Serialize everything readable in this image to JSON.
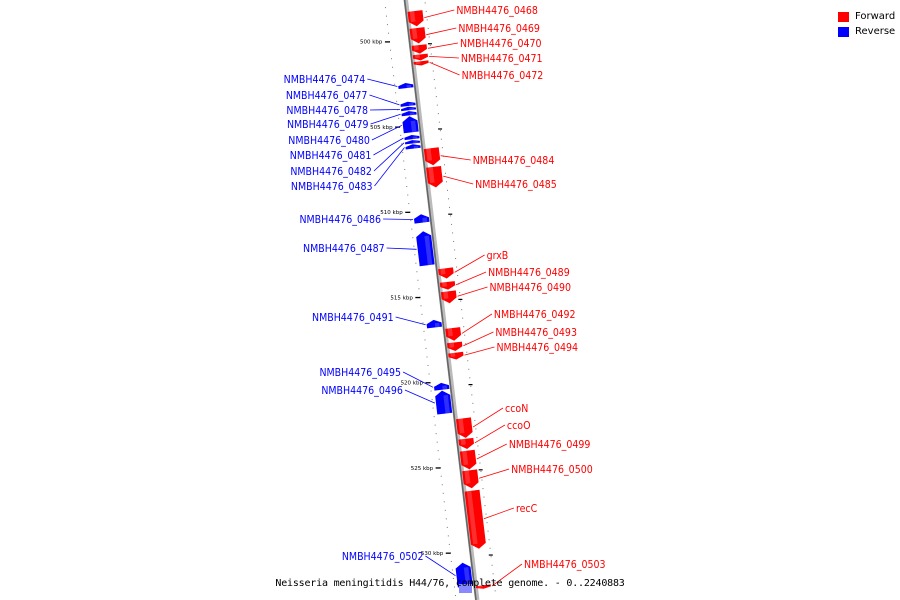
{
  "legend": {
    "forward_label": "Forward",
    "reverse_label": "Reverse",
    "forward_color": "#ff0000",
    "reverse_color": "#0000ff"
  },
  "caption": "Neisseria meningitidis H44/76, complete genome. - 0..2240883",
  "axis": {
    "start_kbp": 497.4,
    "end_kbp": 532.9,
    "ticks": [
      {
        "kbp": 500,
        "label": "500 kbp"
      },
      {
        "kbp": 505,
        "label": "505 kbp"
      },
      {
        "kbp": 510,
        "label": "510 kbp"
      },
      {
        "kbp": 515,
        "label": "515 kbp"
      },
      {
        "kbp": 520,
        "label": "520 kbp"
      },
      {
        "kbp": 525,
        "label": "525 kbp"
      },
      {
        "kbp": 530,
        "label": "530 kbp"
      }
    ]
  },
  "genes": [
    {
      "name": "NMBH4476_0468",
      "strand": "+",
      "start_kbp": 498.4,
      "end_kbp": 499.3
    },
    {
      "name": "NMBH4476_0469",
      "strand": "+",
      "start_kbp": 499.4,
      "end_kbp": 500.3
    },
    {
      "name": "NMBH4476_0470",
      "strand": "+",
      "start_kbp": 500.4,
      "end_kbp": 500.9
    },
    {
      "name": "NMBH4476_0471",
      "strand": "+",
      "start_kbp": 500.95,
      "end_kbp": 501.3
    },
    {
      "name": "NMBH4476_0472",
      "strand": "+",
      "start_kbp": 501.35,
      "end_kbp": 501.6
    },
    {
      "name": "NMBH4476_0474",
      "strand": "-",
      "start_kbp": 502.5,
      "end_kbp": 502.8
    },
    {
      "name": "NMBH4476_0477",
      "strand": "-",
      "start_kbp": 503.6,
      "end_kbp": 503.85
    },
    {
      "name": "NMBH4476_0478",
      "strand": "-",
      "start_kbp": 503.9,
      "end_kbp": 504.1
    },
    {
      "name": "NMBH4476_0479",
      "strand": "-",
      "start_kbp": 504.15,
      "end_kbp": 504.4
    },
    {
      "name": "NMBH4476_0480",
      "strand": "-",
      "start_kbp": 504.45,
      "end_kbp": 505.4
    },
    {
      "name": "NMBH4476_0481",
      "strand": "-",
      "start_kbp": 505.55,
      "end_kbp": 505.8
    },
    {
      "name": "NMBH4476_0482",
      "strand": "-",
      "start_kbp": 505.85,
      "end_kbp": 506.05
    },
    {
      "name": "NMBH4476_0483",
      "strand": "-",
      "start_kbp": 506.1,
      "end_kbp": 506.35
    },
    {
      "name": "NMBH4476_0484",
      "strand": "+",
      "start_kbp": 506.45,
      "end_kbp": 507.45
    },
    {
      "name": "NMBH4476_0485",
      "strand": "+",
      "start_kbp": 507.55,
      "end_kbp": 508.75
    },
    {
      "name": "NMBH4476_0486",
      "strand": "-",
      "start_kbp": 510.2,
      "end_kbp": 510.7
    },
    {
      "name": "NMBH4476_0487",
      "strand": "-",
      "start_kbp": 511.2,
      "end_kbp": 513.2
    },
    {
      "name": "grxB",
      "strand": "+",
      "start_kbp": 513.5,
      "end_kbp": 514.1
    },
    {
      "name": "NMBH4476_0489",
      "strand": "+",
      "start_kbp": 514.3,
      "end_kbp": 514.75
    },
    {
      "name": "NMBH4476_0490",
      "strand": "+",
      "start_kbp": 514.85,
      "end_kbp": 515.55
    },
    {
      "name": "NMBH4476_0491",
      "strand": "-",
      "start_kbp": 516.4,
      "end_kbp": 516.85
    },
    {
      "name": "NMBH4476_0492",
      "strand": "+",
      "start_kbp": 517.0,
      "end_kbp": 517.75
    },
    {
      "name": "NMBH4476_0493",
      "strand": "+",
      "start_kbp": 517.85,
      "end_kbp": 518.35
    },
    {
      "name": "NMBH4476_0494",
      "strand": "+",
      "start_kbp": 518.45,
      "end_kbp": 518.85
    },
    {
      "name": "NMBH4476_0495",
      "strand": "-",
      "start_kbp": 520.1,
      "end_kbp": 520.5
    },
    {
      "name": "NMBH4476_0496",
      "strand": "-",
      "start_kbp": 520.55,
      "end_kbp": 521.9
    },
    {
      "name": "ccoN",
      "strand": "+",
      "start_kbp": 522.3,
      "end_kbp": 523.45
    },
    {
      "name": "ccoO",
      "strand": "+",
      "start_kbp": 523.5,
      "end_kbp": 524.1
    },
    {
      "name": "NMBH4476_0499",
      "strand": "+",
      "start_kbp": 524.2,
      "end_kbp": 525.3
    },
    {
      "name": "NMBH4476_0500",
      "strand": "+",
      "start_kbp": 525.35,
      "end_kbp": 526.4
    },
    {
      "name": "recC",
      "strand": "+",
      "start_kbp": 526.55,
      "end_kbp": 529.95
    },
    {
      "name": "NMBH4476_0502",
      "strand": "-",
      "start_kbp": 530.65,
      "end_kbp": 532.05
    },
    {
      "name": "NMBH4476_0503",
      "strand": "+",
      "start_kbp": 532.1,
      "end_kbp": 532.3
    }
  ]
}
